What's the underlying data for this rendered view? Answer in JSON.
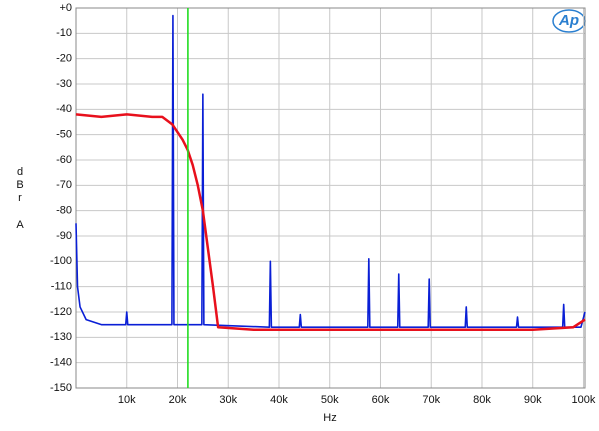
{
  "chart_data": {
    "type": "line",
    "xlabel": "Hz",
    "ylabel": [
      "d",
      "B",
      "r",
      "A"
    ],
    "xlim": [
      0,
      100300
    ],
    "ylim": [
      -150,
      0
    ],
    "xticks": [
      {
        "value": 10000,
        "label": "10k"
      },
      {
        "value": 20000,
        "label": "20k"
      },
      {
        "value": 30000,
        "label": "30k"
      },
      {
        "value": 40000,
        "label": "40k"
      },
      {
        "value": 50000,
        "label": "50k"
      },
      {
        "value": 60000,
        "label": "60k"
      },
      {
        "value": 70000,
        "label": "70k"
      },
      {
        "value": 80000,
        "label": "80k"
      },
      {
        "value": 90000,
        "label": "90k"
      },
      {
        "value": 100000,
        "label": "100k"
      }
    ],
    "yticks": [
      {
        "value": 0,
        "label": "+0"
      },
      -10,
      -20,
      -30,
      -40,
      -50,
      -60,
      -70,
      -80,
      -90,
      -100,
      -110,
      -120,
      -130,
      -140,
      -150
    ],
    "grid": true,
    "series": [
      {
        "color": "#0a1fd6",
        "x": [
          0,
          300,
          800,
          2000,
          5000,
          9800,
          10000,
          10200,
          18900,
          19100,
          19300,
          24800,
          25000,
          25200,
          38100,
          38300,
          38500,
          44000,
          44200,
          44400,
          57500,
          57700,
          57900,
          63400,
          63600,
          63800,
          69400,
          69600,
          69800,
          76700,
          76900,
          77100,
          86800,
          87000,
          87200,
          95900,
          96100,
          96300,
          99500,
          100300
        ],
        "values": [
          -85,
          -110,
          -118,
          -123,
          -125,
          -125,
          -120,
          -125,
          -125,
          -3,
          -125,
          -125,
          -34,
          -125,
          -126,
          -100,
          -126,
          -126,
          -121,
          -126,
          -126,
          -99,
          -126,
          -126,
          -105,
          -126,
          -126,
          -107,
          -126,
          -126,
          -118,
          -126,
          -126,
          -122,
          -126,
          -126,
          -117,
          -126,
          -126,
          -120
        ]
      },
      {
        "color": "#e8101c",
        "x": [
          0,
          5000,
          10000,
          15000,
          17000,
          19000,
          21000,
          22000,
          23000,
          24000,
          25000,
          26000,
          27000,
          28000,
          35000,
          50000,
          70000,
          90000,
          98000,
          100300
        ],
        "values": [
          -42,
          -43,
          -42,
          -43,
          -43,
          -46,
          -52,
          -56,
          -62,
          -70,
          -80,
          -95,
          -110,
          -126,
          -127,
          -127,
          -127,
          -127,
          -126,
          -123
        ]
      },
      {
        "color": "#22dd22",
        "x": [
          22050,
          22050
        ],
        "values": [
          0,
          -150
        ]
      }
    ]
  },
  "logo": "Ap"
}
